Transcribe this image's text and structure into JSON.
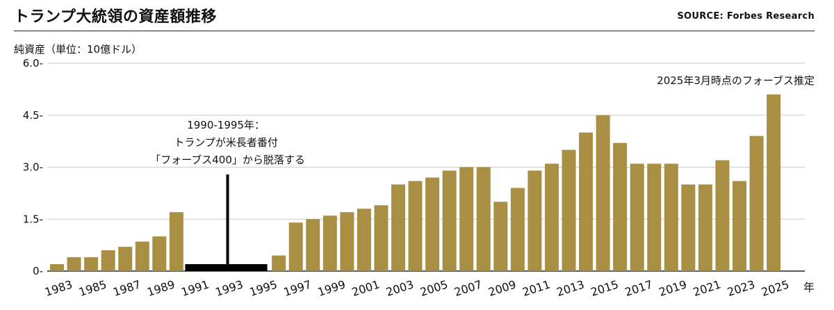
{
  "header": {
    "title": "トランプ大統領の資産額推移",
    "source": "SOURCE: Forbes Research"
  },
  "colors": {
    "bar": "#A88F44",
    "gap_bar": "#000000",
    "grid": "#cccccc",
    "axis": "#222222"
  },
  "chart_data": {
    "type": "bar",
    "ylabel": "純資産（単位：10億ドル）",
    "xlabel": "年",
    "ylim": [
      0,
      6.0
    ],
    "yticks": [
      "0-",
      "1.5-",
      "3.0-",
      "4.5-",
      "6.0-"
    ],
    "ytick_values": [
      0,
      1.5,
      3.0,
      4.5,
      6.0
    ],
    "grid": "horizontal",
    "categories": [
      1983,
      1984,
      1985,
      1986,
      1987,
      1988,
      1989,
      1990,
      1991,
      1992,
      1993,
      1994,
      1995,
      1996,
      1997,
      1998,
      1999,
      2000,
      2001,
      2002,
      2003,
      2004,
      2005,
      2006,
      2007,
      2008,
      2009,
      2010,
      2011,
      2012,
      2013,
      2014,
      2015,
      2016,
      2017,
      2018,
      2019,
      2020,
      2021,
      2022,
      2023,
      2024,
      2025
    ],
    "xtick_labels": [
      "1983",
      "1985",
      "1987",
      "1989",
      "1991",
      "1993",
      "1995",
      "1997",
      "1999",
      "2001",
      "2003",
      "2005",
      "2007",
      "2009",
      "2011",
      "2013",
      "2015",
      "2017",
      "2019",
      "2021",
      "2023",
      "2025"
    ],
    "xtick_years": [
      1983,
      1985,
      1987,
      1989,
      1991,
      1993,
      1995,
      1997,
      1999,
      2001,
      2003,
      2005,
      2007,
      2009,
      2011,
      2013,
      2015,
      2017,
      2019,
      2021,
      2023,
      2025
    ],
    "series": [
      {
        "values": [
          0.2,
          0.4,
          0.4,
          0.6,
          0.7,
          0.85,
          1.0,
          1.7,
          null,
          null,
          null,
          null,
          null,
          0.45,
          1.4,
          1.5,
          1.6,
          1.7,
          1.8,
          1.9,
          2.5,
          2.6,
          2.7,
          2.9,
          3.0,
          3.0,
          2.0,
          2.4,
          2.9,
          3.1,
          3.5,
          4.0,
          4.5,
          3.7,
          3.1,
          3.1,
          3.1,
          2.5,
          2.5,
          3.2,
          2.6,
          3.9,
          5.1
        ]
      }
    ],
    "gap": {
      "from": 1991,
      "to": 1995,
      "value": 0.2
    },
    "annotations": {
      "gap_lines": [
        "1990-1995年：",
        "トランプが米長者番付",
        "「フォーブス400」から脱落する"
      ],
      "latest_note": "2025年3月時点のフォーブス推定"
    }
  }
}
